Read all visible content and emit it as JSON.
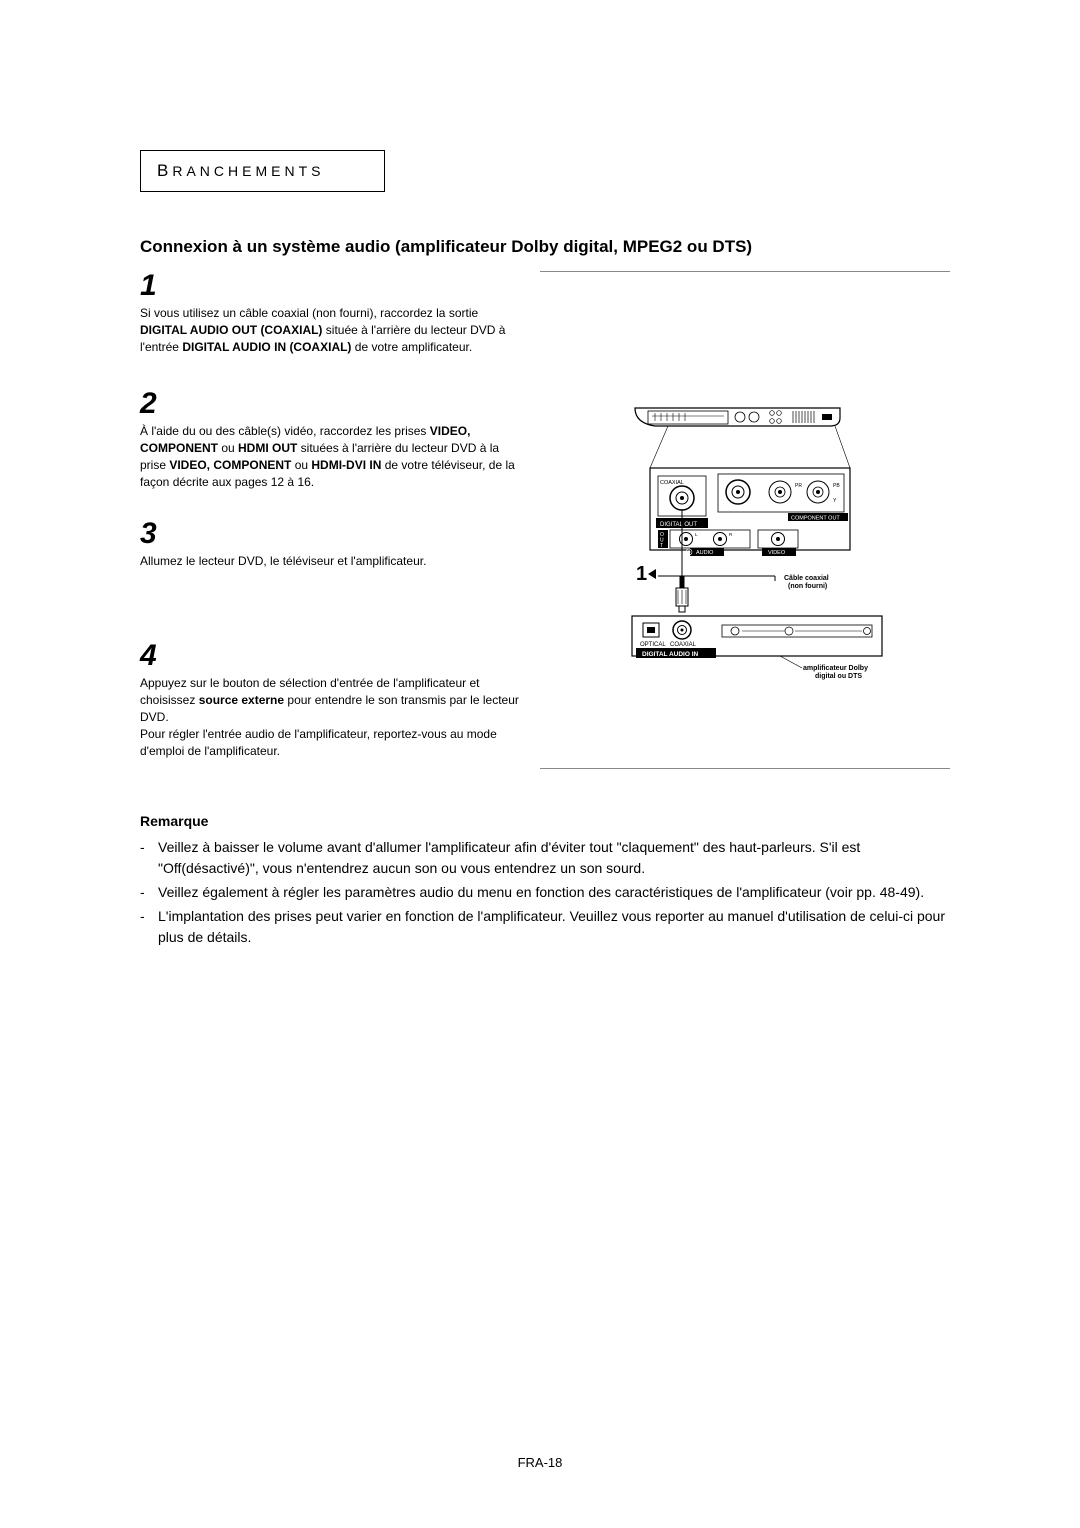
{
  "section_label": "Branchements",
  "page_title": "Connexion à un système audio (amplificateur Dolby digital, MPEG2 ou DTS)",
  "steps": [
    {
      "num": "1",
      "html": "Si vous utilisez un câble coaxial (non fourni), raccordez la sortie <b>DIGITAL AUDIO OUT (COAXIAL)</b> située à l'arrière du lecteur DVD à l'entrée <b>DIGITAL AUDIO IN (COAXIAL)</b> de votre amplificateur."
    },
    {
      "num": "2",
      "html": "À l'aide du ou des câble(s) vidéo, raccordez les prises <b>VIDEO, COMPONENT</b> ou <b>HDMI OUT</b> situées à l'arrière du lecteur DVD à la prise <b>VIDEO, COMPONENT</b> ou <b>HDMI-DVI IN</b> de votre téléviseur, de la façon décrite aux pages 12 à 16."
    },
    {
      "num": "3",
      "html": "Allumez le lecteur DVD, le téléviseur et l'amplificateur."
    },
    {
      "num": "4",
      "html": "Appuyez sur le bouton de sélection d'entrée de l'amplificateur et choisissez <b>source externe</b> pour entendre le son transmis par le lecteur DVD.<br>Pour régler l'entrée audio de l'amplificateur, reportez-vous au mode d'emploi de l'amplificateur."
    }
  ],
  "remark_title": "Remarque",
  "remarks": [
    {
      "bold": true,
      "text": "Veillez à baisser le volume avant d'allumer l'amplificateur afin d'éviter tout \"claquement\" des haut-parleurs. S'il est \"Off(désactivé)\", vous n'entendrez aucun son ou vous entendrez un son sourd."
    },
    {
      "bold": false,
      "text": "Veillez également à régler les paramètres audio du menu en fonction des caractéristiques de l'amplificateur (voir pp. 48-49)."
    },
    {
      "bold": false,
      "text": "L'implantation des prises peut varier en fonction de l'amplificateur. Veuillez vous reporter au manuel d'utilisation de celui-ci pour plus de détails."
    }
  ],
  "page_number": "FRA-18",
  "diagram": {
    "colors": {
      "hr": "#888888",
      "line": "#000000",
      "bg": "#ffffff",
      "fill_white": "#ffffff"
    },
    "player_back": {
      "labels": {
        "coaxial": "COAXIAL",
        "digital_out": "DIGITAL OUT",
        "component_out": "COMPONENT OUT",
        "audio": "AUDIO",
        "video": "VIDEO",
        "out_vertical": "OUT",
        "pr": "PR",
        "pb": "PB",
        "y": "Y",
        "l": "L",
        "r": "R"
      }
    },
    "amp_back": {
      "optical": "OPTICAL",
      "coaxial": "COAXIAL",
      "digital_audio_in": "DIGITAL AUDIO IN"
    },
    "callout_number": "1",
    "callout_arrow": "▸",
    "cable_label": "Câble coaxial\n(non fourni)",
    "amp_label": "amplificateur Dolby\ndigital ou DTS"
  }
}
